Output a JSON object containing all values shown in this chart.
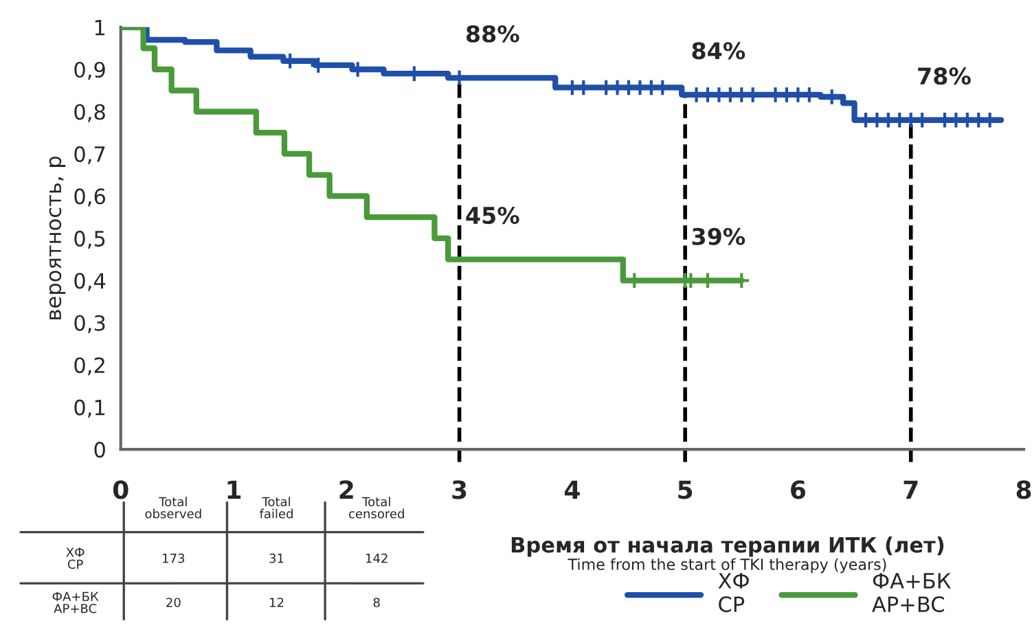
{
  "chart_data": {
    "type": "step",
    "xlabel": "Время от начала терапии ИТК (лет)",
    "ylabel": "вероятность, р",
    "xlim": [
      0,
      8
    ],
    "xticks": [
      0,
      1,
      2,
      3,
      4,
      5,
      6,
      7,
      8
    ],
    "ylim": [
      0,
      1
    ],
    "yticks": [
      0,
      {
        "value": 0.1,
        "label": "0,1"
      },
      {
        "value": 0.2,
        "label": "0,2"
      },
      {
        "value": 0.3,
        "label": "0,3"
      },
      {
        "value": 0.4,
        "label": "0,4"
      },
      {
        "value": 0.5,
        "label": "0,5"
      },
      {
        "value": 0.6,
        "label": "0,6"
      },
      {
        "value": 0.7,
        "label": "0,7"
      },
      {
        "value": 0.8,
        "label": "0,8"
      },
      {
        "value": 0.9,
        "label": "0,9"
      },
      1
    ],
    "grid": false,
    "legend": "bottom right",
    "series": [
      {
        "name": "ХФ\nCP",
        "color": "#1f4fa8",
        "marker": "none",
        "x": [
          0,
          0.23,
          0.57,
          0.85,
          1.15,
          1.44,
          1.72,
          2.05,
          2.33,
          2.9,
          3.85,
          4.97,
          6.2,
          6.4,
          6.5,
          7.8
        ],
        "values": [
          1,
          0.97,
          0.965,
          0.945,
          0.93,
          0.92,
          0.91,
          0.9,
          0.89,
          0.88,
          0.857,
          0.84,
          0.835,
          0.82,
          0.78,
          0.78
        ]
      },
      {
        "name": "ФА+БК\nAP+BC",
        "color": "#4a9a3a",
        "x": [
          0,
          0.2,
          0.3,
          0.45,
          0.67,
          1.2,
          1.45,
          1.67,
          1.85,
          2.18,
          2.78,
          2.9,
          4.45,
          5.5
        ],
        "values": [
          1,
          0.95,
          0.9,
          0.85,
          0.8,
          0.75,
          0.7,
          0.65,
          0.6,
          0.55,
          0.5,
          0.45,
          0.4,
          0.4
        ]
      },
      {
        "type": "scatter",
        "color": "#1f4fa8",
        "marker": "cross",
        "x": [
          1.5,
          1.75,
          2.1,
          2.6,
          3.0,
          4.0,
          4.1,
          4.3,
          4.4,
          4.5,
          4.6,
          4.7,
          4.8,
          5.1,
          5.2,
          5.3,
          5.4,
          5.5,
          5.6,
          5.8,
          5.9,
          6.0,
          6.1,
          6.3,
          6.6,
          6.7,
          6.8,
          6.9,
          7.0,
          7.1,
          7.3,
          7.4,
          7.5,
          7.6,
          7.7
        ],
        "values": [
          0.92,
          0.91,
          0.9,
          0.89,
          0.88,
          0.857,
          0.857,
          0.857,
          0.857,
          0.857,
          0.857,
          0.857,
          0.857,
          0.84,
          0.84,
          0.84,
          0.84,
          0.84,
          0.84,
          0.84,
          0.84,
          0.84,
          0.84,
          0.835,
          0.78,
          0.78,
          0.78,
          0.78,
          0.78,
          0.78,
          0.78,
          0.78,
          0.78,
          0.78,
          0.78
        ]
      },
      {
        "type": "scatter",
        "color": "#4a9a3a",
        "marker": "cross",
        "x": [
          4.55,
          5.0,
          5.05,
          5.2,
          5.5
        ],
        "values": [
          0.4,
          0.4,
          0.4,
          0.4,
          0.4
        ]
      }
    ],
    "ref_lines": [
      {
        "axis": "x",
        "value": 3,
        "line_style": "dashed",
        "color": "#000000"
      },
      {
        "axis": "x",
        "value": 5,
        "line_style": "dashed",
        "color": "#000000"
      },
      {
        "axis": "x",
        "value": 7,
        "line_style": "dashed",
        "color": "#000000"
      }
    ],
    "annotations": [
      {
        "text": "88%",
        "x": 3,
        "y": 0.88
      },
      {
        "text": "84%",
        "x": 5,
        "y": 0.84
      },
      {
        "text": "78%",
        "x": 7,
        "y": 0.78
      },
      {
        "text": "45%",
        "x": 3,
        "y": 0.45
      },
      {
        "text": "39%",
        "x": 5,
        "y": 0.4
      },
      "Time from the start of TKI therapy (years)",
      "Total\nobserved",
      "Total\nfailed",
      "Total\ncensored",
      "ХФ\nCP",
      "173",
      "31",
      "142",
      "ФА+БК\nAP+BC",
      "20",
      "12",
      "8"
    ]
  }
}
